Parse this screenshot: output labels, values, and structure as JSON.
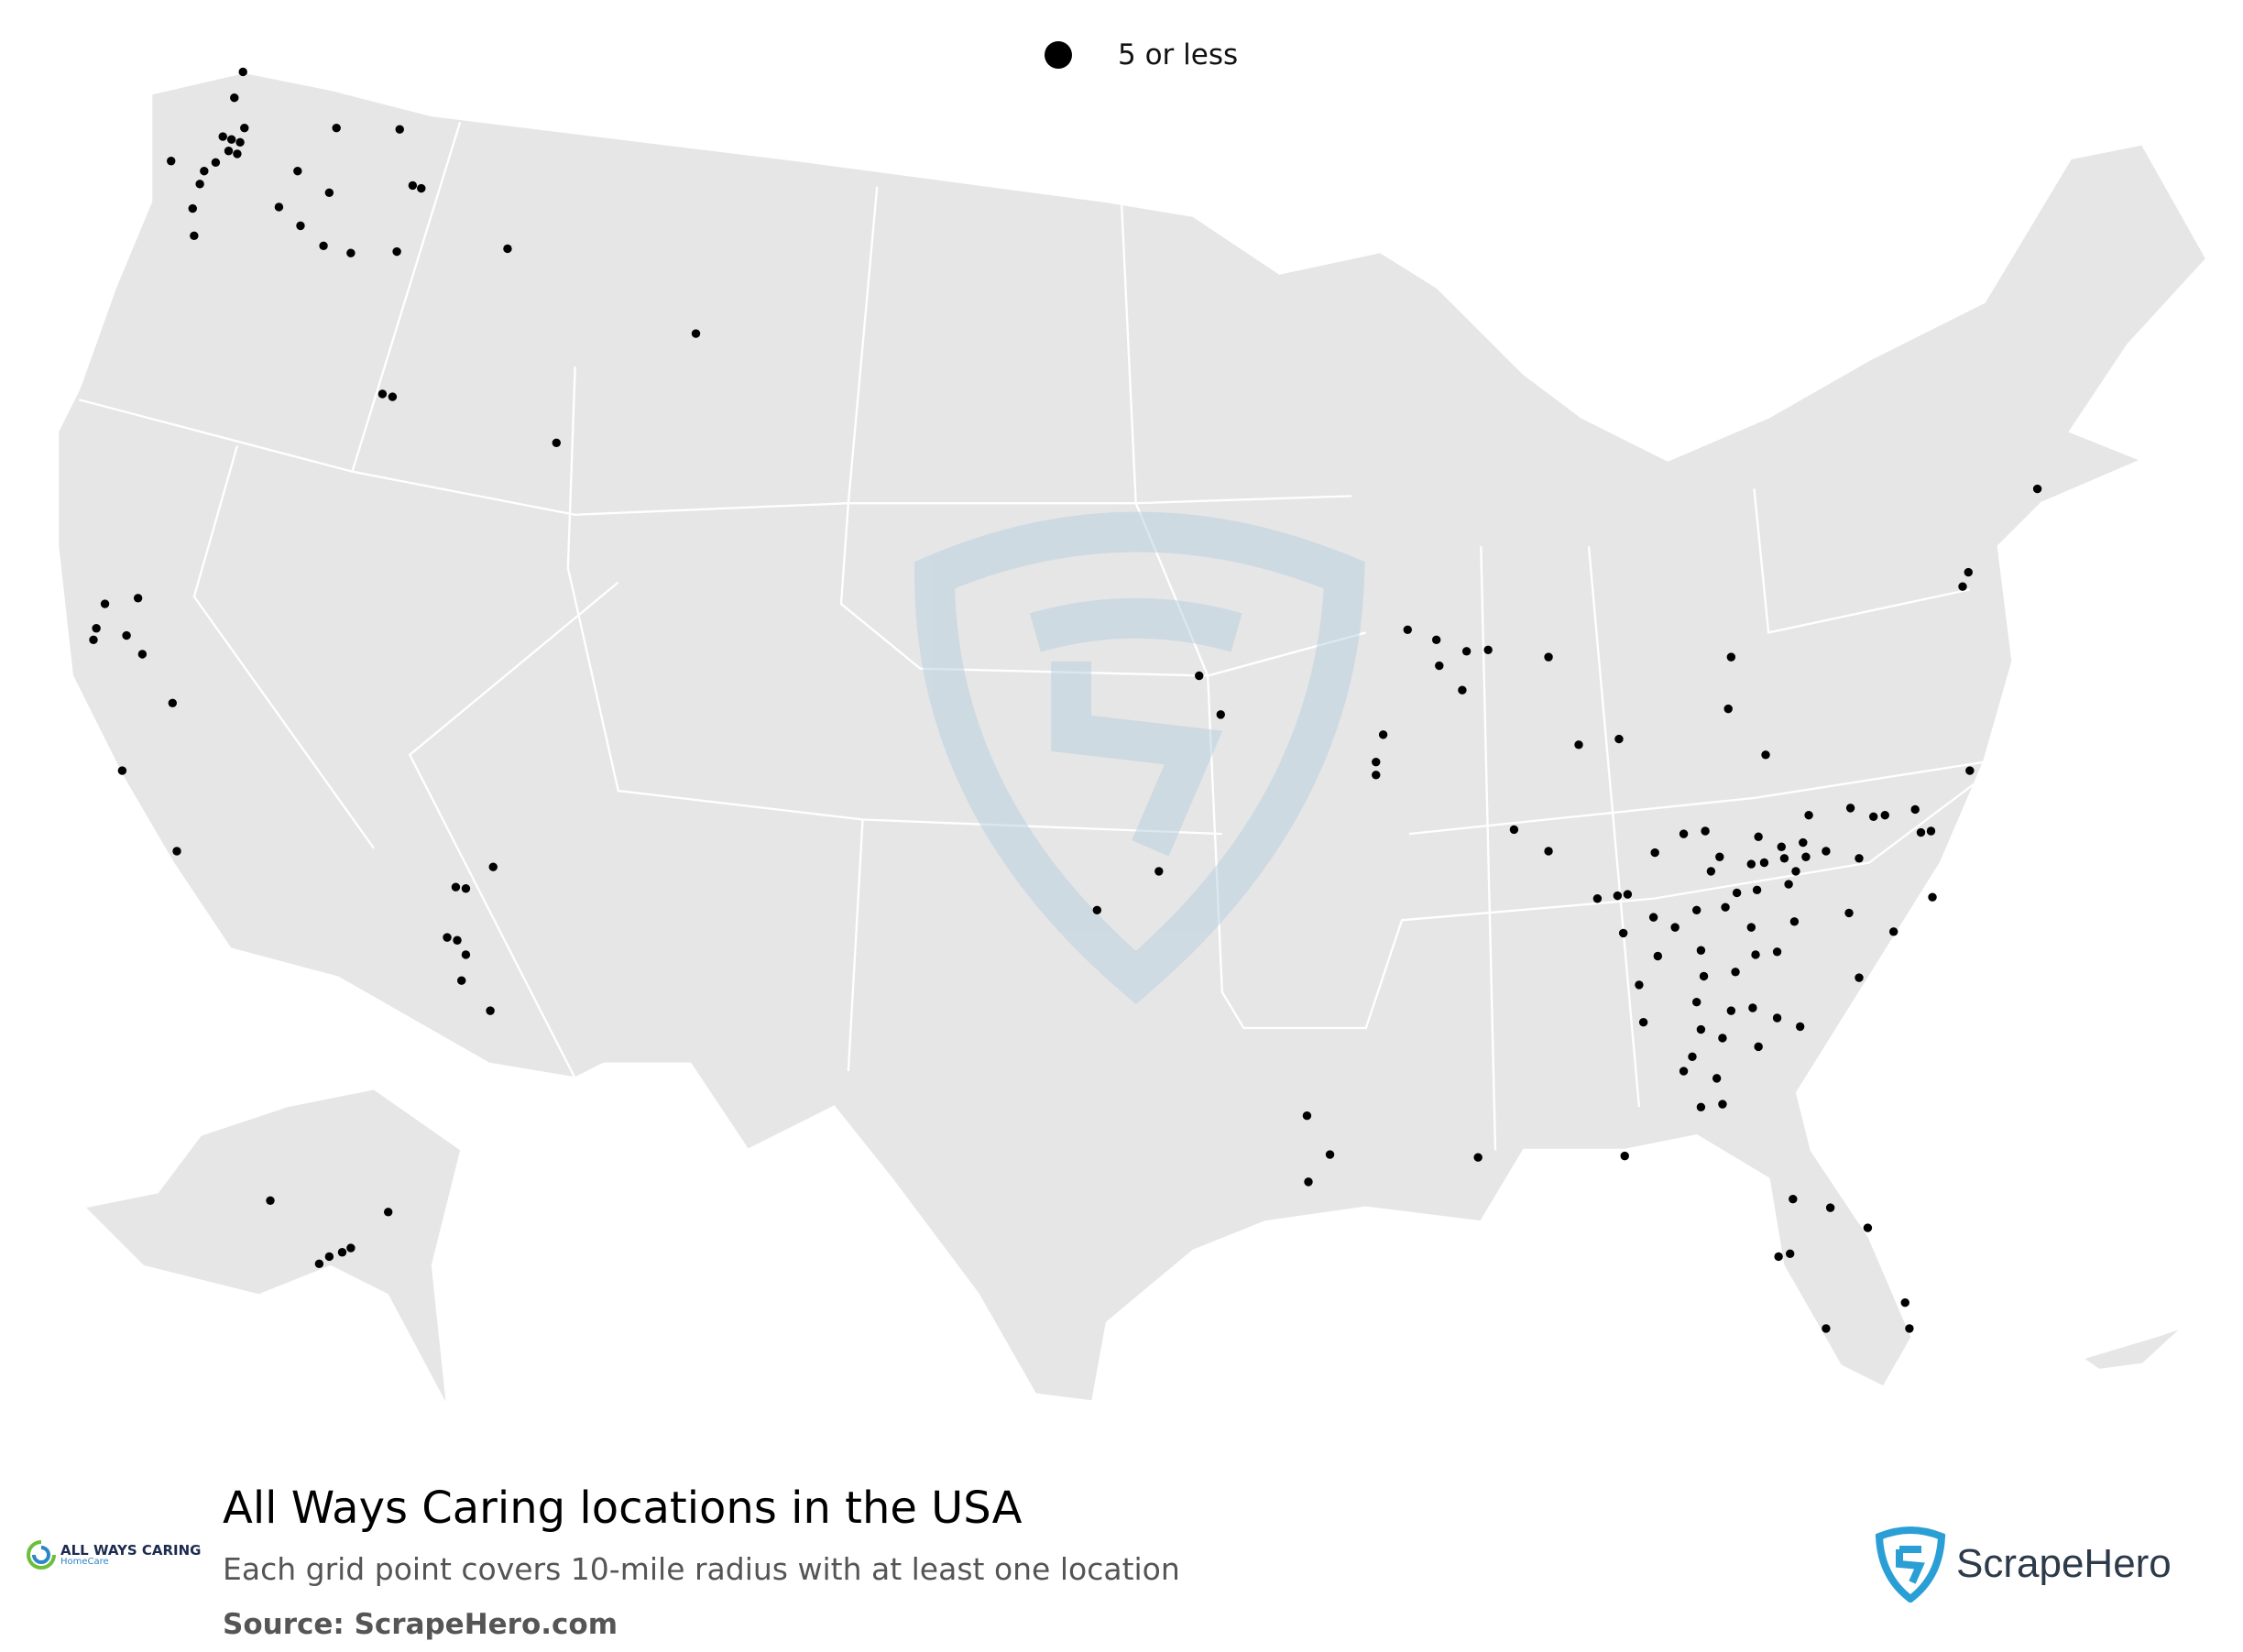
{
  "legend": {
    "label": "5 or less",
    "dot_color": "#000000"
  },
  "title": "All Ways Caring locations in the USA",
  "subtitle": "Each grid point covers 10-mile radius with at least one location",
  "source": "Source: ScrapeHero.com",
  "brand_logo": {
    "text": "ALL WAYS CARING",
    "sub": "HomeCare"
  },
  "scrapehero_logo": {
    "text": "ScrapeHero",
    "color": "#2a9fd6"
  },
  "map": {
    "land_color": "#e6e6e6",
    "border_color": "#ffffff",
    "watermark_color": "#c9dae6"
  }
}
